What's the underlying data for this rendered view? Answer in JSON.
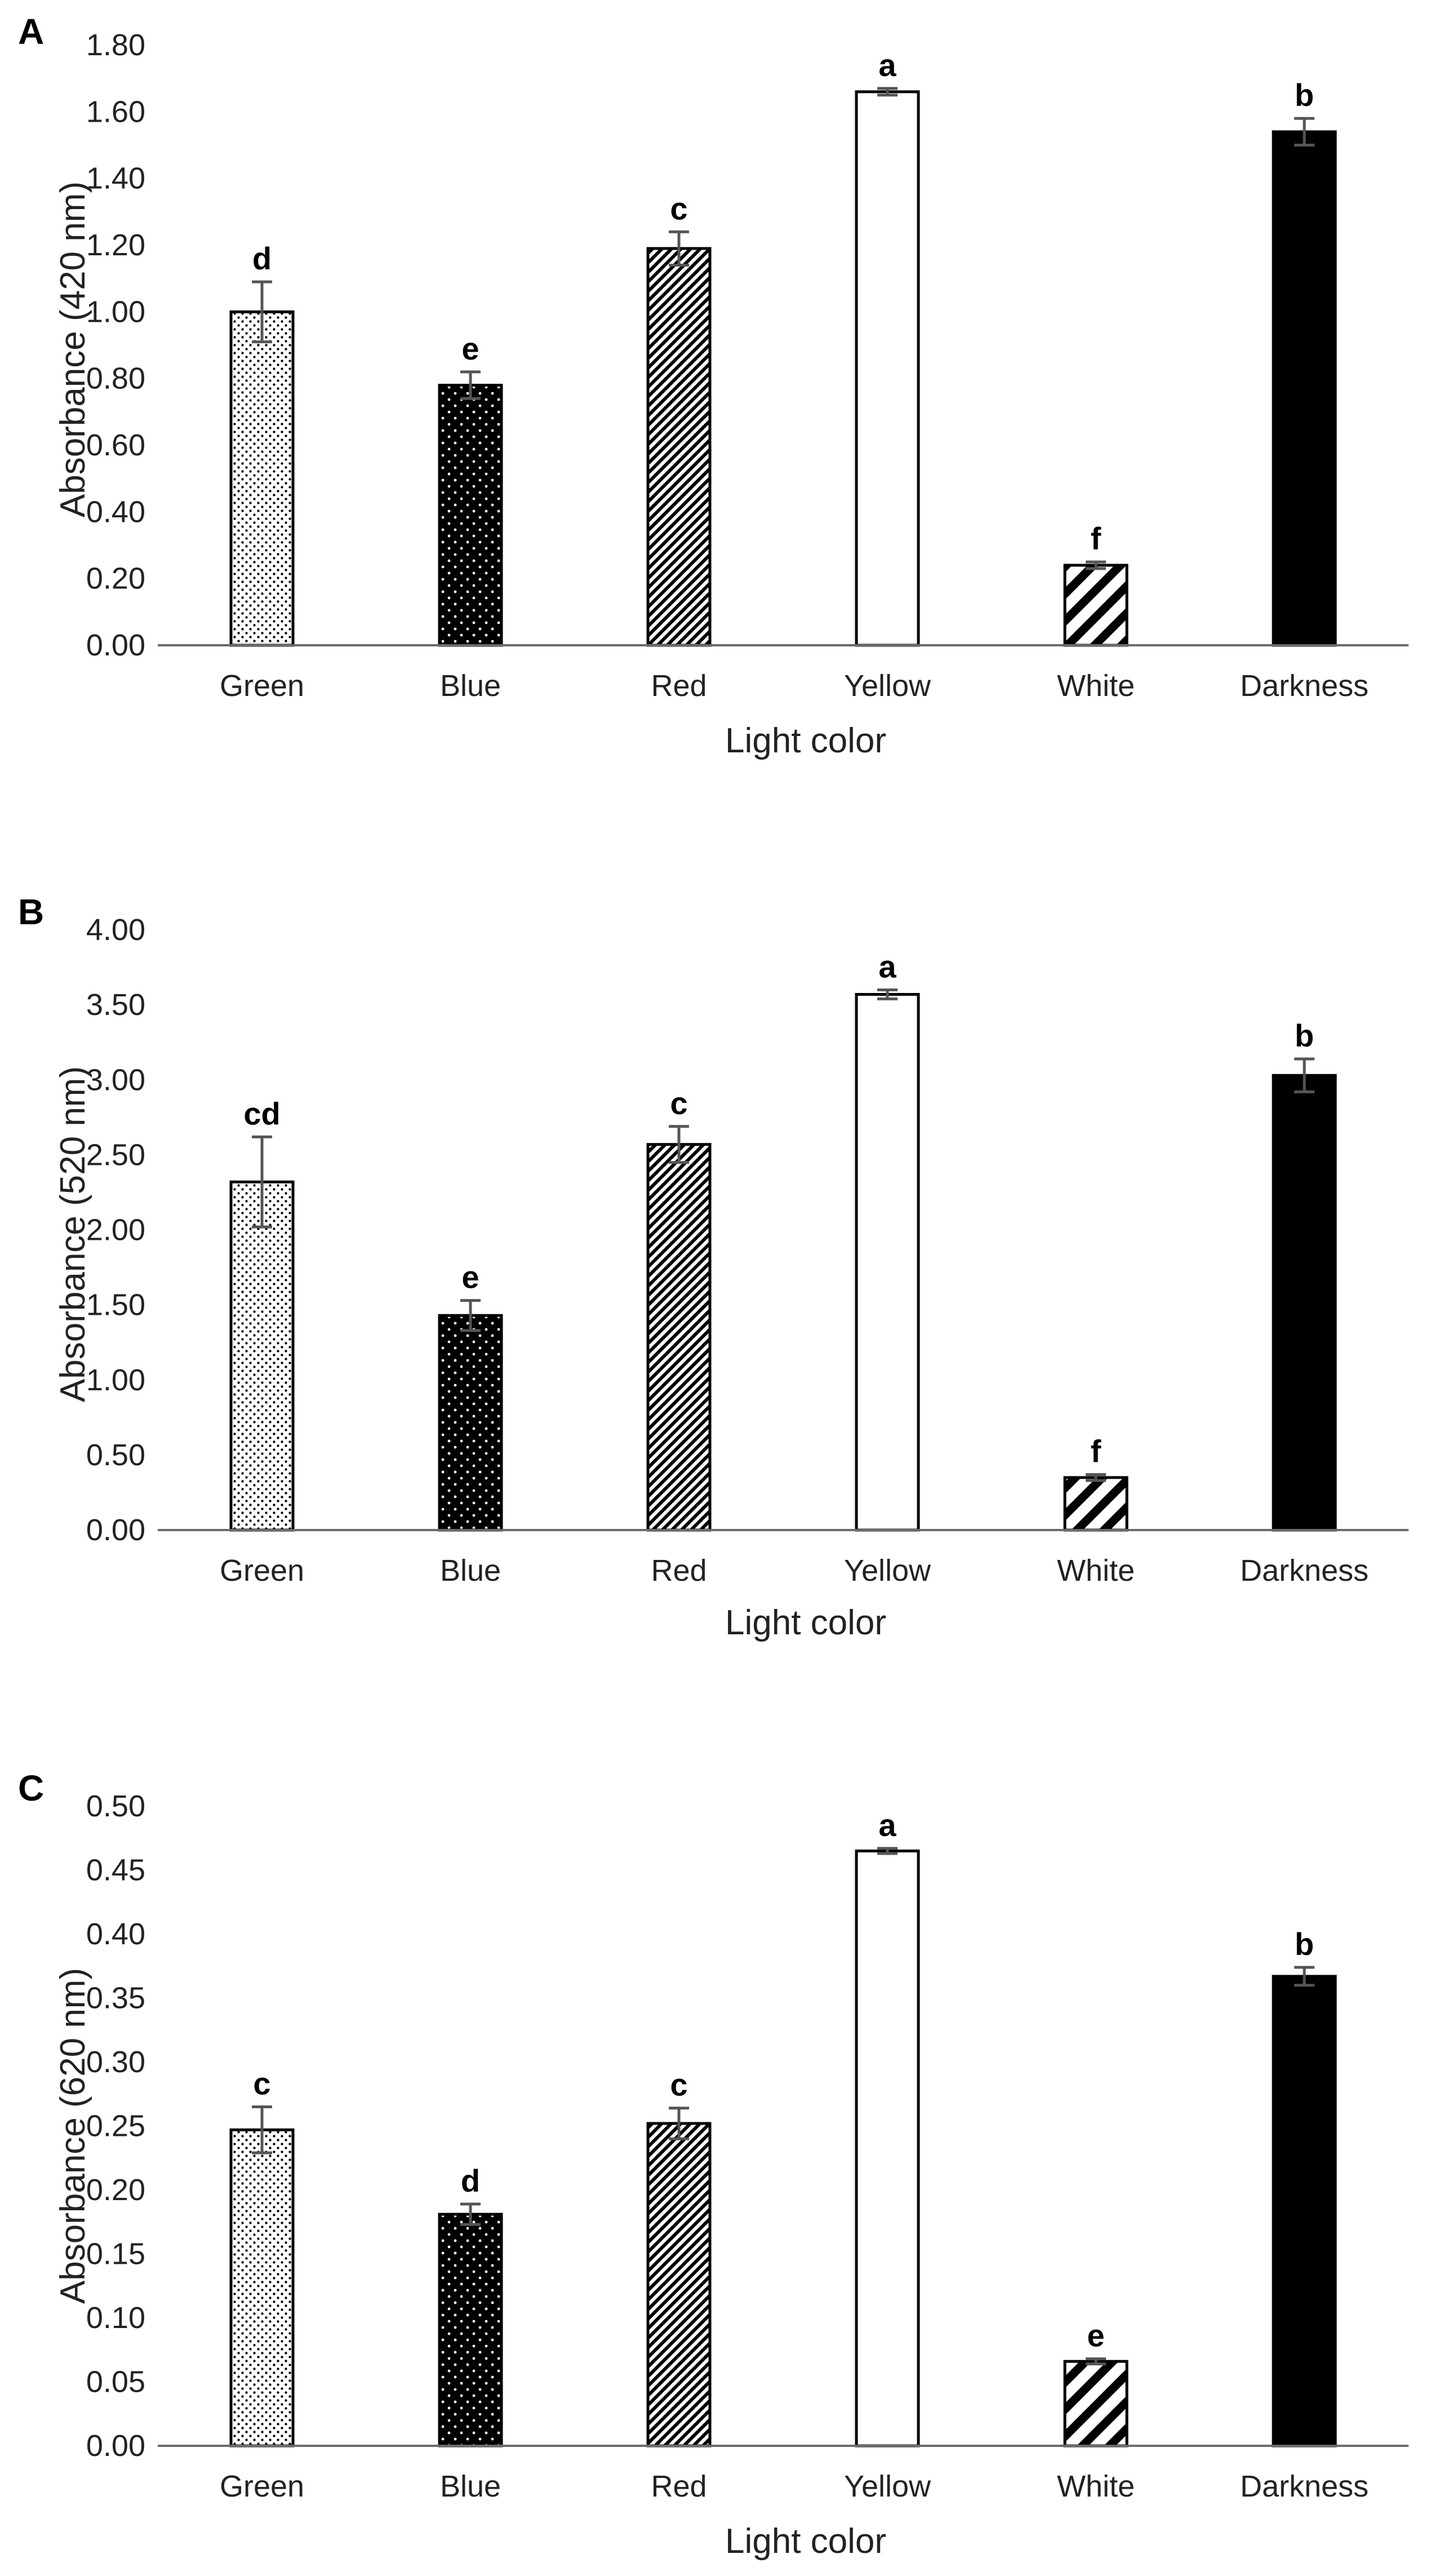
{
  "chart_data": [
    {
      "panel": "A",
      "type": "bar",
      "title": "",
      "xlabel": "Light color",
      "ylabel": "Absorbance (420 nm)",
      "categories": [
        "Green",
        "Blue",
        "Red",
        "Yellow",
        "White",
        "Darkness"
      ],
      "values": [
        1.0,
        0.78,
        1.19,
        1.66,
        0.24,
        1.54
      ],
      "errors": [
        0.09,
        0.04,
        0.05,
        0.01,
        0.01,
        0.04
      ],
      "significance": [
        "d",
        "e",
        "c",
        "a",
        "f",
        "b"
      ],
      "ylim": [
        0,
        1.8
      ],
      "yticks": [
        0,
        0.2,
        0.4,
        0.6,
        0.8,
        1.0,
        1.2,
        1.4,
        1.6,
        1.8
      ],
      "ytick_labels": [
        "0.00",
        "0.20",
        "0.40",
        "0.60",
        "0.80",
        "1.00",
        "1.20",
        "1.40",
        "1.60",
        "1.80"
      ]
    },
    {
      "panel": "B",
      "type": "bar",
      "title": "",
      "xlabel": "Light color",
      "ylabel": "Absorbance (520 nm)",
      "categories": [
        "Green",
        "Blue",
        "Red",
        "Yellow",
        "White",
        "Darkness"
      ],
      "values": [
        2.32,
        1.43,
        2.57,
        3.57,
        0.35,
        3.03
      ],
      "errors": [
        0.3,
        0.1,
        0.12,
        0.03,
        0.02,
        0.11
      ],
      "significance": [
        "cd",
        "e",
        "c",
        "a",
        "f",
        "b"
      ],
      "ylim": [
        0,
        4.0
      ],
      "yticks": [
        0,
        0.5,
        1.0,
        1.5,
        2.0,
        2.5,
        3.0,
        3.5,
        4.0
      ],
      "ytick_labels": [
        "0.00",
        "0.50",
        "1.00",
        "1.50",
        "2.00",
        "2.50",
        "3.00",
        "3.50",
        "4.00"
      ]
    },
    {
      "panel": "C",
      "type": "bar",
      "title": "",
      "xlabel": "Light color",
      "ylabel": "Absorbance (620 nm)",
      "categories": [
        "Green",
        "Blue",
        "Red",
        "Yellow",
        "White",
        "Darkness"
      ],
      "values": [
        0.247,
        0.181,
        0.252,
        0.465,
        0.066,
        0.367
      ],
      "errors": [
        0.018,
        0.008,
        0.012,
        0.002,
        0.002,
        0.007
      ],
      "significance": [
        "c",
        "d",
        "c",
        "a",
        "e",
        "b"
      ],
      "ylim": [
        0,
        0.5
      ],
      "yticks": [
        0,
        0.05,
        0.1,
        0.15,
        0.2,
        0.25,
        0.3,
        0.35,
        0.4,
        0.45,
        0.5
      ],
      "ytick_labels": [
        "0.00",
        "0.05",
        "0.10",
        "0.15",
        "0.20",
        "0.25",
        "0.30",
        "0.35",
        "0.40",
        "0.45",
        "0.50"
      ]
    }
  ],
  "bar_fills": [
    "green-dots-pattern",
    "blue-dots-pattern",
    "red-diagonal-pattern",
    "yellow-solid-white",
    "white-wide-diagonal-pattern",
    "darkness-solid-black"
  ],
  "colors": {
    "bar_outline": "#000000",
    "axis": "#6b6b6b",
    "text": "#222222",
    "error_bar": "#555555"
  }
}
